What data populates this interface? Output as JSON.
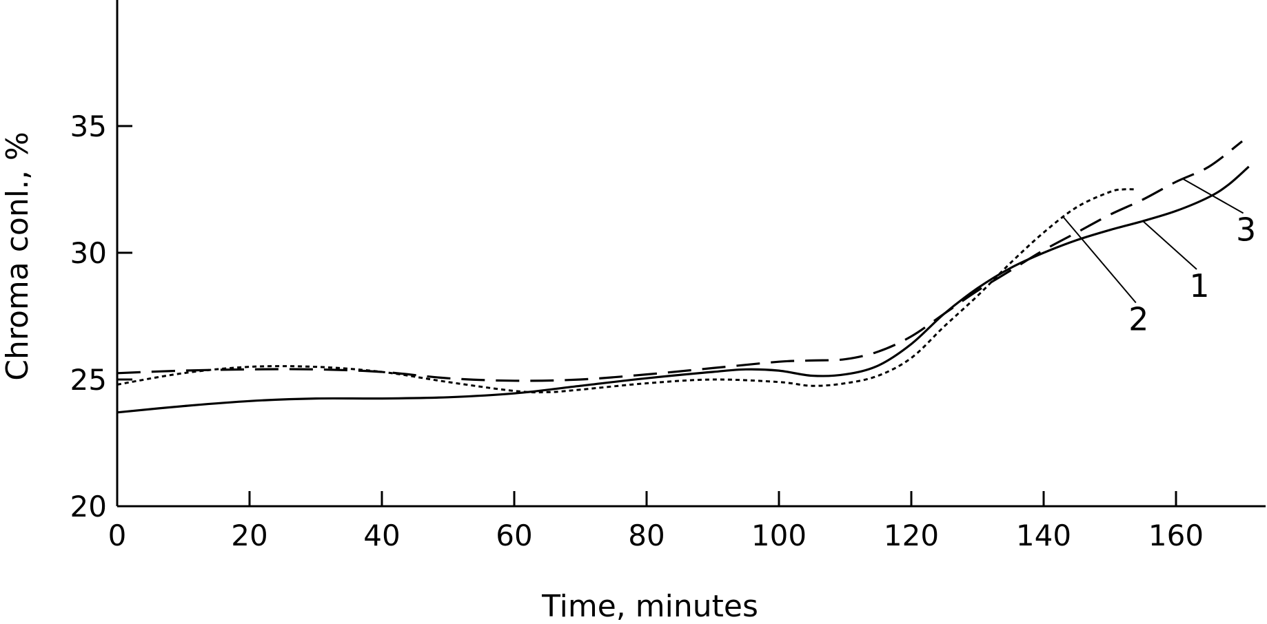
{
  "chart_data": {
    "type": "line",
    "xlabel": "Time, minutes",
    "ylabel": "Chroma conl., %",
    "xlim": [
      0,
      173
    ],
    "ylim": [
      20,
      40
    ],
    "xticks": [
      0,
      20,
      40,
      60,
      80,
      100,
      120,
      140,
      160
    ],
    "yticks": [
      20,
      25,
      30,
      35
    ],
    "grid": false,
    "series": [
      {
        "name": "1",
        "style": "solid",
        "x": [
          0,
          10,
          20,
          30,
          40,
          50,
          60,
          70,
          80,
          90,
          95,
          100,
          105,
          110,
          115,
          120,
          125,
          130,
          135,
          140,
          145,
          150,
          155,
          160,
          165,
          168,
          171
        ],
        "y": [
          23.7,
          23.95,
          24.15,
          24.25,
          24.25,
          24.3,
          24.45,
          24.75,
          25.05,
          25.3,
          25.4,
          25.35,
          25.15,
          25.2,
          25.55,
          26.4,
          27.6,
          28.6,
          29.4,
          30.0,
          30.5,
          30.9,
          31.25,
          31.65,
          32.2,
          32.7,
          33.4
        ]
      },
      {
        "name": "2",
        "style": "dotted",
        "x": [
          0,
          10,
          20,
          30,
          40,
          50,
          60,
          65,
          70,
          80,
          90,
          100,
          105,
          110,
          115,
          120,
          125,
          130,
          135,
          140,
          145,
          150,
          152,
          154
        ],
        "y": [
          24.8,
          25.25,
          25.5,
          25.5,
          25.3,
          24.9,
          24.55,
          24.5,
          24.6,
          24.85,
          25.0,
          24.9,
          24.75,
          24.85,
          25.15,
          25.85,
          27.1,
          28.3,
          29.6,
          30.8,
          31.8,
          32.4,
          32.5,
          32.5
        ]
      },
      {
        "name": "3",
        "style": "dashed",
        "x": [
          0,
          10,
          20,
          30,
          40,
          50,
          60,
          70,
          80,
          90,
          100,
          105,
          110,
          115,
          120,
          125,
          130,
          135,
          140,
          145,
          150,
          155,
          160,
          165,
          170
        ],
        "y": [
          25.25,
          25.35,
          25.4,
          25.4,
          25.3,
          25.05,
          24.95,
          25.0,
          25.2,
          25.45,
          25.7,
          25.75,
          25.8,
          26.1,
          26.7,
          27.6,
          28.5,
          29.3,
          30.1,
          30.8,
          31.5,
          32.1,
          32.8,
          33.4,
          34.4
        ]
      }
    ],
    "callouts": [
      {
        "label": "1",
        "series": "1",
        "at_x": 155
      },
      {
        "label": "2",
        "series": "2",
        "at_x": 143
      },
      {
        "label": "3",
        "series": "3",
        "at_x": 161
      }
    ]
  }
}
